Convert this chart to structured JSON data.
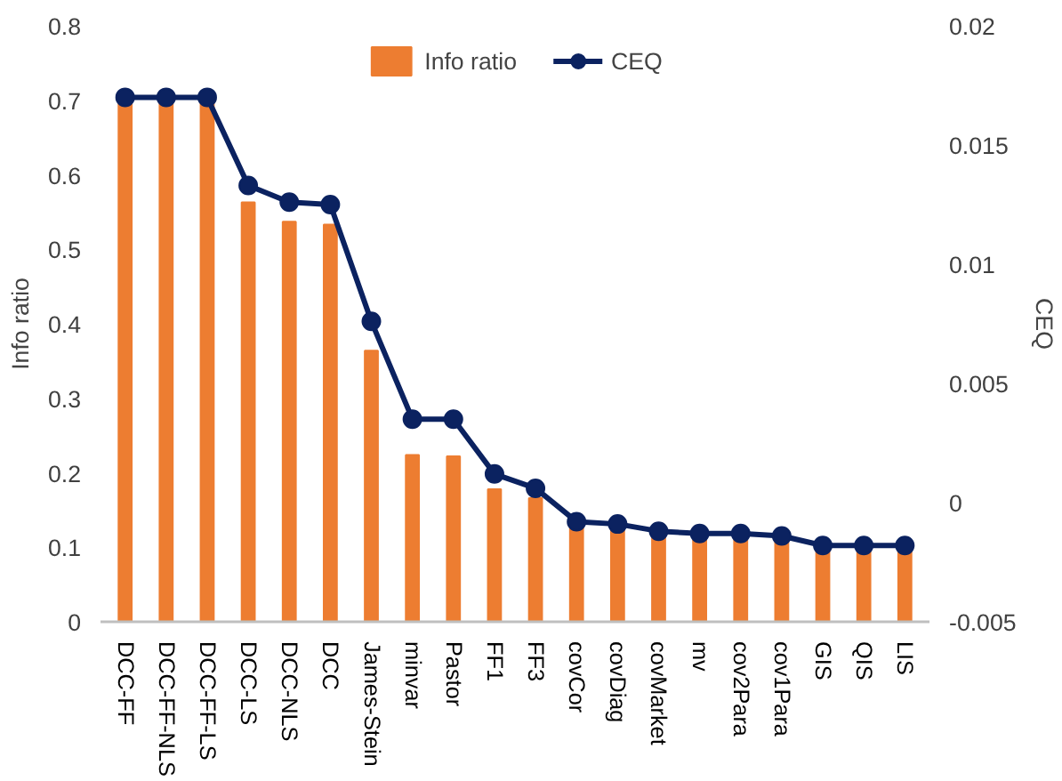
{
  "chart_data": {
    "type": "bar",
    "categories": [
      "DCC-FF",
      "DCC-FF-NLS",
      "DCC-FF-LS",
      "DCC-LS",
      "DCC-NLS",
      "DCC",
      "James-Stein",
      "minvar",
      "Pastor",
      "FF1",
      "FF3",
      "covCor",
      "covDiag",
      "covMarket",
      "mv",
      "cov2Para",
      "cov1Para",
      "GIS",
      "QIS",
      "LIS"
    ],
    "series": [
      {
        "name": "Info ratio",
        "color": "#ed7d31",
        "values": [
          0.7,
          0.7,
          0.7,
          0.563,
          0.537,
          0.533,
          0.364,
          0.224,
          0.222,
          0.178,
          0.166,
          0.132,
          0.125,
          0.115,
          0.113,
          0.112,
          0.11,
          0.098,
          0.098,
          0.097
        ]
      },
      {
        "name": "CEQ",
        "type": "line",
        "axis": "y2",
        "color": "#0b2260",
        "marker": "circle",
        "values": [
          0.017,
          0.017,
          0.017,
          0.0133,
          0.0126,
          0.0125,
          0.0076,
          0.0035,
          0.0035,
          0.0012,
          0.0006,
          -0.0008,
          -0.0009,
          -0.0012,
          -0.0013,
          -0.0013,
          -0.0014,
          -0.0018,
          -0.0018,
          -0.0018
        ]
      }
    ],
    "ylabel": "Info ratio",
    "y2label": "CEQ",
    "ylim": [
      0,
      0.8
    ],
    "yticks": [
      0,
      0.1,
      0.2,
      0.3,
      0.4,
      0.5,
      0.6,
      0.7,
      0.8
    ],
    "y2lim": [
      -0.005,
      0.02
    ],
    "y2ticks": [
      -0.005,
      0,
      0.005,
      0.01,
      0.015,
      0.02
    ],
    "legend": "top",
    "grid": false
  }
}
